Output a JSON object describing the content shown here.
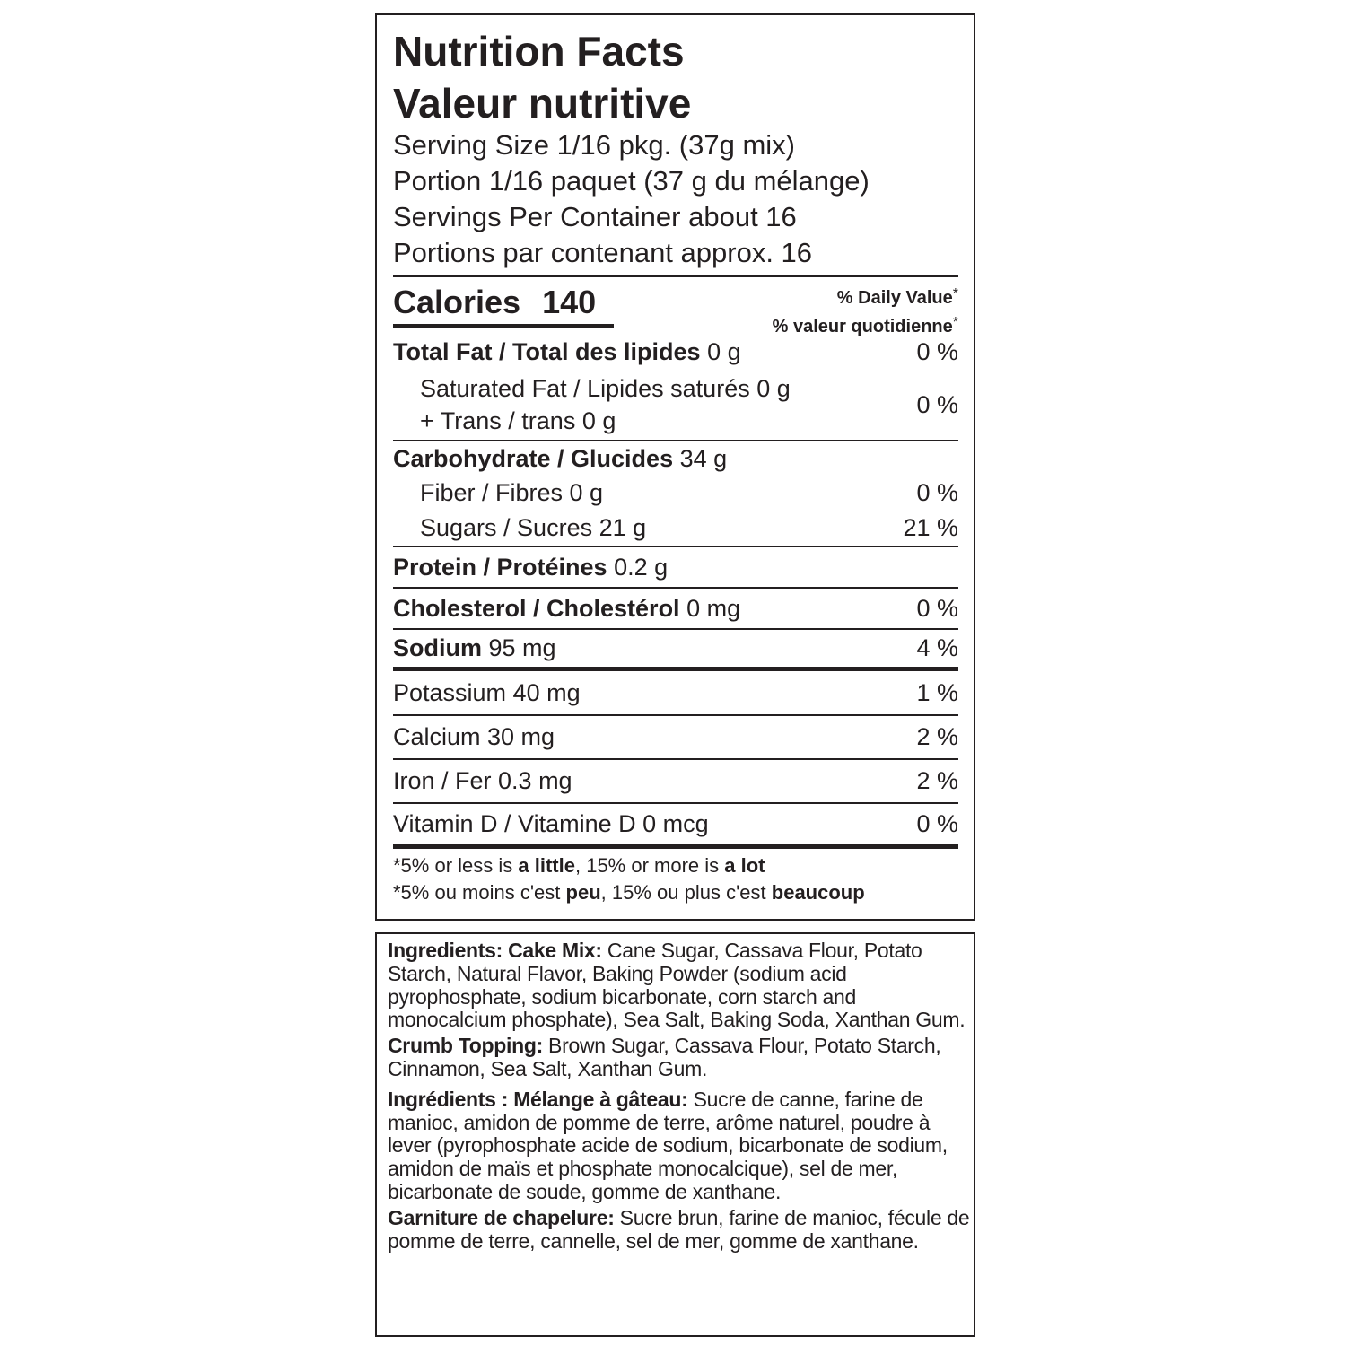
{
  "nutrition": {
    "title": "Nutrition Facts",
    "title_fr": "Valeur nutritive",
    "serving": [
      "Serving Size 1/16 pkg. (37g mix)",
      "Portion 1/16 paquet (37 g du mélange)",
      "Servings Per Container about 16",
      "Portions par contenant approx. 16"
    ],
    "calories_label": "Calories",
    "calories": 140,
    "dv_header": [
      "% Daily Value",
      "% valeur quotidienne"
    ],
    "asterisk": "*",
    "rows": [
      {
        "label": "Total Fat / Total des lipides",
        "amount": "0 g",
        "dv": "0 %"
      },
      {
        "lines": [
          "Saturated Fat / Lipides saturés 0 g",
          "+ Trans / trans 0 g"
        ],
        "dv": "0 %"
      },
      {
        "label": "Carbohydrate / Glucides",
        "amount": "34 g"
      },
      {
        "text": "Fiber / Fibres 0 g",
        "dv": "0 %"
      },
      {
        "text": "Sugars / Sucres 21 g",
        "dv": "21 %"
      },
      {
        "label": "Protein / Protéines",
        "amount": "0.2 g"
      },
      {
        "label": "Cholesterol / Cholestérol",
        "amount": "0 mg",
        "dv": "0 %"
      },
      {
        "label": "Sodium",
        "amount": "95 mg",
        "dv": "4 %"
      },
      {
        "text": "Potassium 40 mg",
        "dv": "1 %"
      },
      {
        "text": "Calcium 30 mg",
        "dv": "2 %"
      },
      {
        "text": "Iron / Fer 0.3 mg",
        "dv": "2 %"
      },
      {
        "text": "Vitamin D / Vitamine D 0 mcg",
        "dv": "0 %"
      }
    ],
    "footnote": [
      [
        "*5% or less is",
        "a little",
        ", 15% or more is",
        "a lot"
      ],
      [
        "*5% ou moins c'est",
        "peu",
        ", 15% ou plus c'est",
        "beaucoup"
      ]
    ]
  },
  "ingredients": [
    {
      "label": "Ingredients: Cake Mix:",
      "text": "Cane Sugar, Cassava Flour, Potato Starch, Natural Flavor, Baking Powder (sodium acid pyrophosphate, sodium bicarbonate, corn starch and monocalcium phosphate), Sea Salt, Baking Soda, Xanthan Gum."
    },
    {
      "label": "Crumb Topping:",
      "text": "Brown Sugar, Cassava Flour, Potato Starch, Cinnamon, Sea Salt, Xanthan Gum."
    },
    {
      "label": "Ingrédients : Mélange à gâteau:",
      "text": "Sucre de canne, farine de manioc, amidon de pomme de terre, arôme naturel, poudre à lever (pyrophosphate acide de sodium, bicarbonate de sodium, amidon de maïs et phosphate monocalcique), sel de mer, bicarbonate de soude, gomme de xanthane."
    },
    {
      "label": "Garniture de chapelure:",
      "text": "Sucre brun, farine de manioc, fécule de pomme de terre, cannelle, sel de mer, gomme de xanthane."
    }
  ]
}
